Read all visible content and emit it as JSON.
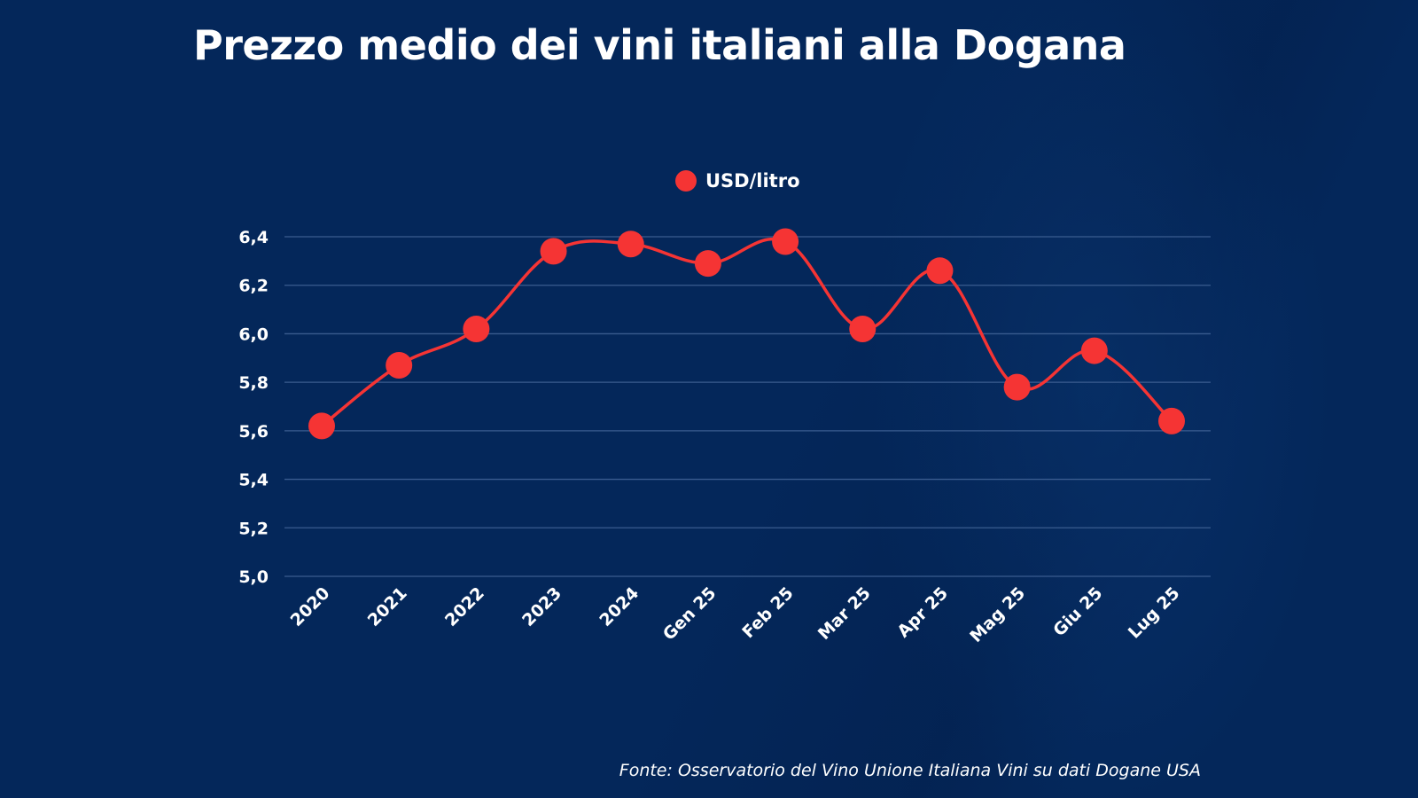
{
  "chart_data": {
    "type": "line",
    "title": "Prezzo medio dei vini italiani alla Dogana",
    "xlabel": "",
    "ylabel": "",
    "categories": [
      "2020",
      "2021",
      "2022",
      "2023",
      "2024",
      "Gen 25",
      "Feb 25",
      "Mar 25",
      "Apr 25",
      "Mag 25",
      "Giu 25",
      "Lug 25"
    ],
    "series": [
      {
        "name": "USD/litro",
        "color": "#f53434",
        "values": [
          5.62,
          5.87,
          6.02,
          6.34,
          6.37,
          6.29,
          6.38,
          6.02,
          6.26,
          5.78,
          5.93,
          5.64
        ]
      }
    ],
    "ylim": [
      5.0,
      6.4
    ],
    "yticks": [
      5.0,
      5.2,
      5.4,
      5.6,
      5.8,
      6.0,
      6.2,
      6.4
    ],
    "ytick_labels": [
      "5,0",
      "5,2",
      "5,4",
      "5,6",
      "5,8",
      "6,0",
      "6,2",
      "6,4"
    ],
    "grid": true,
    "smooth": true,
    "legend_position": "top-center",
    "source": "Fonte: Osservatorio del Vino Unione Italiana Vini su dati Dogane USA"
  },
  "colors": {
    "background": "#04275a",
    "gridline": "#3a5c8f",
    "text": "#ffffff"
  }
}
